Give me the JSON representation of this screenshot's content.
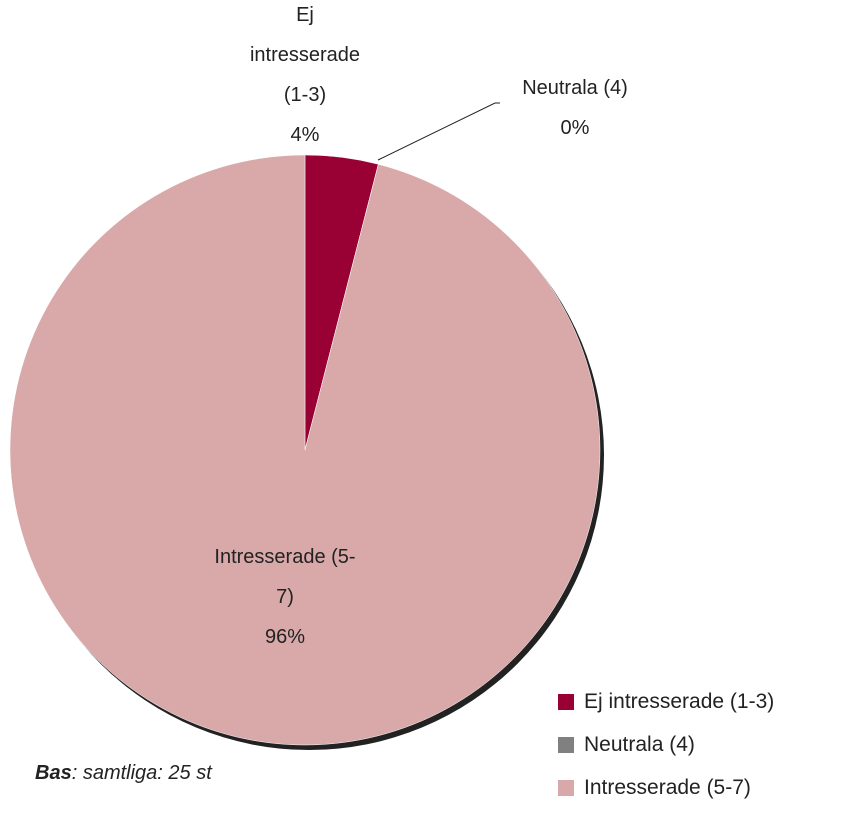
{
  "chart_data": {
    "type": "pie",
    "categories": [
      "Ej intresserade (1-3)",
      "Neutrala (4)",
      "Intresserade (5-7)"
    ],
    "values": [
      4,
      0,
      96
    ],
    "value_labels": [
      "4%",
      "0%",
      "96%"
    ],
    "colors": [
      "#990033",
      "#808080",
      "#d9a9a9"
    ],
    "legend": "bottom-right",
    "note": {
      "bold": "Bas",
      "text": ": samtliga: 25 st"
    }
  }
}
